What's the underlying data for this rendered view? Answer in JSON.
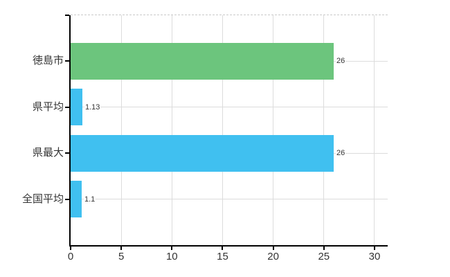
{
  "chart_data": {
    "type": "bar",
    "orientation": "horizontal",
    "title": "",
    "xlabel": "",
    "ylabel": "",
    "categories": [
      "徳島市",
      "県平均",
      "県最大",
      "全国平均"
    ],
    "values": [
      26,
      1.13,
      26,
      1.1
    ],
    "value_labels": [
      "26",
      "1.13",
      "26",
      "1.1"
    ],
    "bar_colors": [
      "#6cc57d",
      "#40c0f0",
      "#40c0f0",
      "#40c0f0"
    ],
    "x_ticks": [
      0,
      5,
      10,
      15,
      20,
      25,
      30
    ],
    "x_tick_labels": [
      "0",
      "5",
      "10",
      "15",
      "20",
      "25",
      "30"
    ],
    "xlim": [
      0,
      31.3
    ],
    "grid": true,
    "legend": false
  },
  "colors": {
    "background": "#ffffff",
    "grid": "#dcdcdc",
    "grid_top_dashed": "#c9c9c9",
    "axis": "#000000",
    "text": "#333333",
    "bar_green": "#6cc57d",
    "bar_blue": "#40c0f0"
  }
}
